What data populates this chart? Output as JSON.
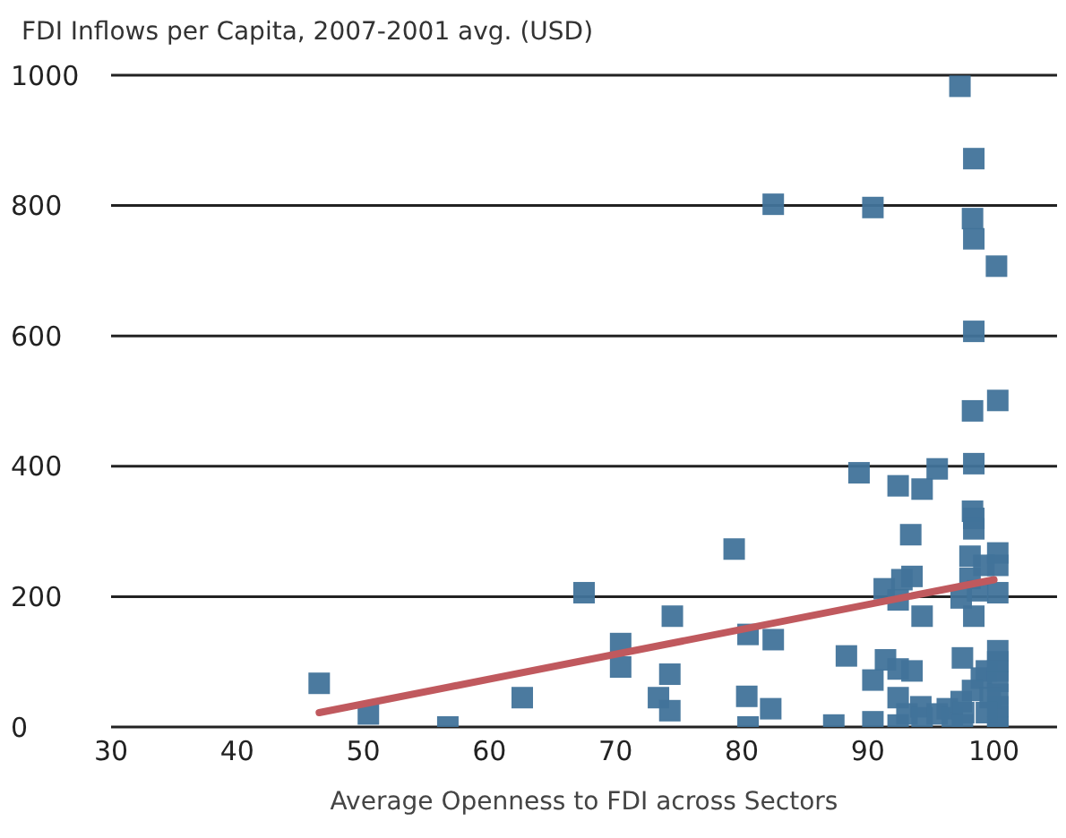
{
  "chart_data": {
    "type": "scatter",
    "title": "FDI Inflows per Capita, 2007-2001 avg. (USD)",
    "xlabel": "Average Openness to FDI across Sectors",
    "xlim": [
      30,
      105
    ],
    "xticks": [
      30,
      40,
      50,
      60,
      70,
      80,
      90,
      100
    ],
    "ylim": [
      0,
      1000
    ],
    "yticks": [
      0,
      200,
      400,
      600,
      800,
      1000
    ],
    "grid": "y",
    "series": [
      {
        "color": "#41739a",
        "marker": "square",
        "x": [
          46.5,
          50.4,
          56.7,
          62.6,
          67.5,
          70.4,
          70.4,
          73.4,
          74.5,
          74.3,
          74.3,
          79.4,
          80.5,
          80.4,
          80.5,
          82.5,
          82.3,
          82.5,
          89.3,
          92.4,
          94.3,
          95.5,
          93.4,
          98.3,
          98.4,
          98.4,
          98.1,
          99.2,
          100.3,
          100.3,
          100.3,
          91.3,
          92.7,
          93.5,
          92.4,
          98.1,
          97.4,
          98.7,
          94.3,
          98.4,
          88.3,
          91.4,
          90.4,
          92.4,
          93.5,
          97.5,
          100.3,
          100.3,
          99.4,
          99.0,
          98.3,
          100.3,
          100.3,
          100.3,
          100.3,
          100.3,
          100.3,
          99.7,
          99.4,
          92.4,
          93.1,
          94.2,
          94.3,
          95.5,
          96.3,
          96.7,
          97.4,
          97.6,
          97.5,
          87.3,
          90.4,
          92.4,
          97.3,
          98.4,
          90.4,
          98.3,
          98.4,
          100.2,
          98.4,
          98.3,
          98.4,
          100.3
        ],
        "values": [
          67,
          20,
          0,
          45,
          206,
          128,
          92,
          45,
          170,
          81,
          25,
          273,
          142,
          47,
          0,
          134,
          28,
          802,
          390,
          370,
          365,
          396,
          295,
          331,
          320,
          304,
          262,
          248,
          267,
          248,
          206,
          212,
          226,
          231,
          195,
          228,
          198,
          209,
          170,
          170,
          109,
          103,
          72,
          89,
          86,
          106,
          117,
          100,
          86,
          75,
          56,
          86,
          70,
          50,
          31,
          17,
          0,
          45,
          22,
          45,
          20,
          31,
          14,
          20,
          28,
          14,
          39,
          22,
          3,
          3,
          8,
          3,
          983,
          872,
          797,
          780,
          749,
          707,
          607,
          485,
          404,
          501
        ]
      },
      {
        "type": "line",
        "marker": "none",
        "color": "#c0595e",
        "x": [
          46.5,
          100
        ],
        "values": [
          22,
          226
        ]
      }
    ]
  }
}
